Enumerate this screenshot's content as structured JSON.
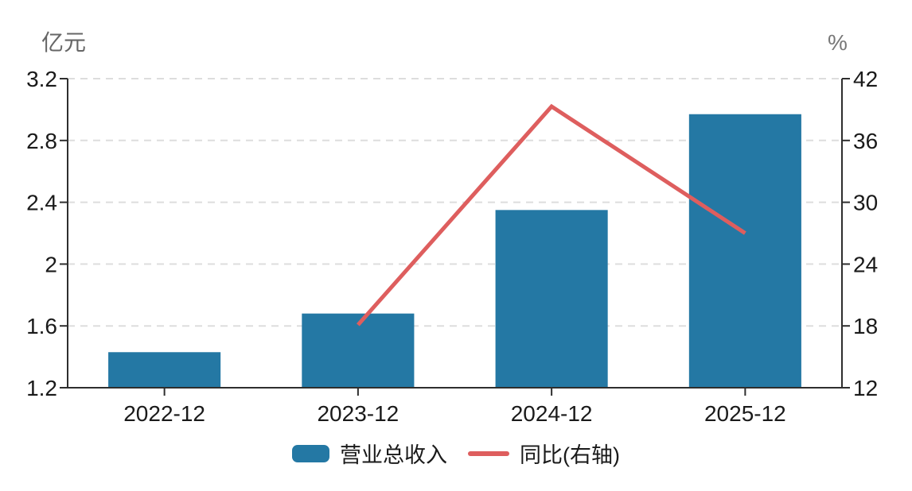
{
  "chart_data": {
    "type": "combo",
    "title": "",
    "categories": [
      "2022-12",
      "2023-12",
      "2024-12",
      "2025-12"
    ],
    "series": [
      {
        "name": "营业总收入",
        "type": "bar",
        "axis": "left",
        "color": "#2478A4",
        "values": [
          1.43,
          1.68,
          2.35,
          2.97
        ]
      },
      {
        "name": "同比(右轴)",
        "type": "line",
        "axis": "right",
        "color": "#DE5E5E",
        "values": [
          null,
          18.1,
          39.3,
          27.0
        ]
      }
    ],
    "left_axis": {
      "title": "亿元",
      "min": 1.2,
      "max": 3.2,
      "tick_labels": [
        "1.2",
        "1.6",
        "2",
        "2.4",
        "2.8",
        "3.2"
      ],
      "tick_values": [
        1.2,
        1.6,
        2.0,
        2.4,
        2.8,
        3.2
      ]
    },
    "right_axis": {
      "title": "%",
      "min": 12,
      "max": 42,
      "tick_labels": [
        "12",
        "18",
        "24",
        "30",
        "36",
        "42"
      ],
      "tick_values": [
        12,
        18,
        24,
        30,
        36,
        42
      ]
    },
    "grid": true,
    "legend_position": "bottom",
    "colors": {
      "axis": "#2e2e2e",
      "grid": "#dddddd",
      "tick_label": "#1a1a1a",
      "left_title": "#666666",
      "right_title": "#777777",
      "background": "#ffffff"
    }
  }
}
